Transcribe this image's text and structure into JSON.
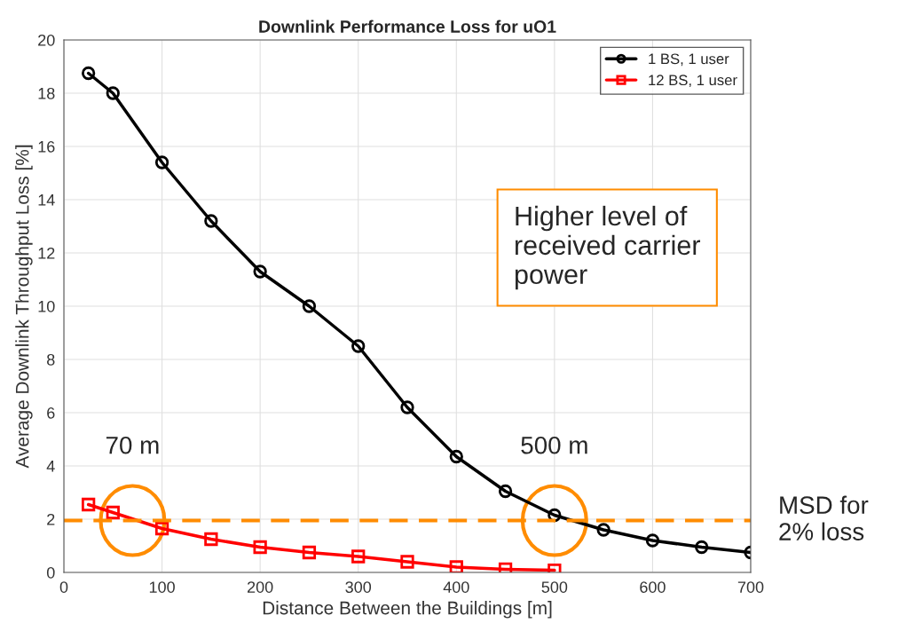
{
  "chart_data": {
    "type": "line",
    "title": "Downlink Performance Loss for uO1",
    "xlabel": "Distance Between the Buildings [m]",
    "ylabel": "Average Downlink Throughput Loss [%]",
    "x": [
      25,
      50,
      100,
      150,
      200,
      250,
      300,
      350,
      400,
      450,
      500,
      550,
      600,
      650,
      700
    ],
    "series": [
      {
        "name": "1 BS, 1 user",
        "color": "#000000",
        "marker": "circle",
        "values": [
          18.75,
          18.0,
          15.4,
          13.2,
          11.3,
          10.0,
          8.5,
          6.2,
          4.35,
          3.05,
          2.15,
          1.6,
          1.2,
          0.95,
          0.75
        ]
      },
      {
        "name": "12 BS, 1 user",
        "color": "#ff0000",
        "marker": "square",
        "values": [
          2.55,
          2.25,
          1.65,
          1.25,
          0.95,
          0.75,
          0.6,
          0.4,
          0.2,
          0.12,
          0.08,
          null,
          null,
          null,
          null
        ]
      }
    ],
    "xlim": [
      0,
      700
    ],
    "xticks": [
      0,
      100,
      200,
      300,
      400,
      500,
      600,
      700
    ],
    "ylim": [
      0,
      20
    ],
    "yticks": [
      0,
      2,
      4,
      6,
      8,
      10,
      12,
      14,
      16,
      18,
      20
    ],
    "grid": true,
    "legend": "top right",
    "line_style": "solid",
    "ref_lines": [
      {
        "axis": "y",
        "value": 1.95,
        "label": "MSD for 2% loss",
        "color": "#ff8c00",
        "line_style": "dashed"
      }
    ],
    "annotations": [
      {
        "text": "70 m",
        "x": 70,
        "y": 1.95
      },
      {
        "text": "500 m",
        "x": 500,
        "y": 1.95
      },
      "Higher level of received carrier power"
    ]
  }
}
